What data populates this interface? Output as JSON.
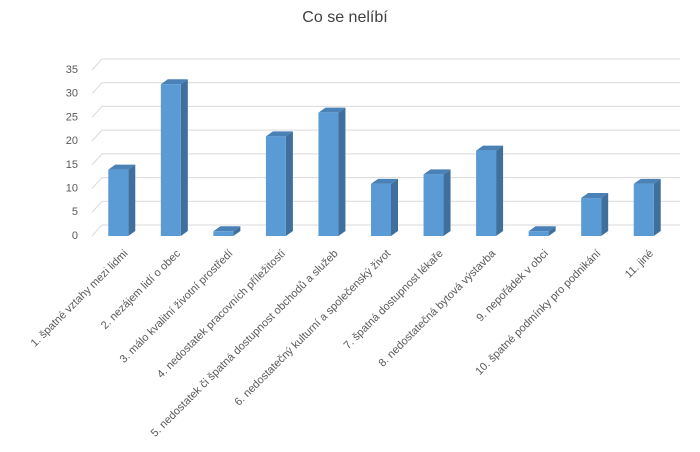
{
  "chart_data": {
    "type": "bar",
    "title": "Co se nelíbí",
    "categories": [
      "1. špatné vztahy mezi lidmi",
      "2. nezájem lidí o obec",
      "3. málo kvalitní životní prostředí",
      "4. nedostatek pracovních příležitostí",
      "5. nedostatek či špatná dostupnost obchodů a služeb",
      "6. nedostatečný kulturní a společenský život",
      "7. špatná dostupnost lékaře",
      "8. nedostatečná bytová výstavba",
      "9. nepořádek v obci",
      "10. špatné podmínky pro podnikání",
      "11. jiné"
    ],
    "values": [
      14,
      32,
      1,
      21,
      26,
      11,
      13,
      18,
      1,
      8,
      11
    ],
    "color": "#5b9bd5",
    "ylim": [
      0,
      35
    ],
    "yticks": [
      0,
      5,
      10,
      15,
      20,
      25,
      30,
      35
    ],
    "grid": true
  }
}
